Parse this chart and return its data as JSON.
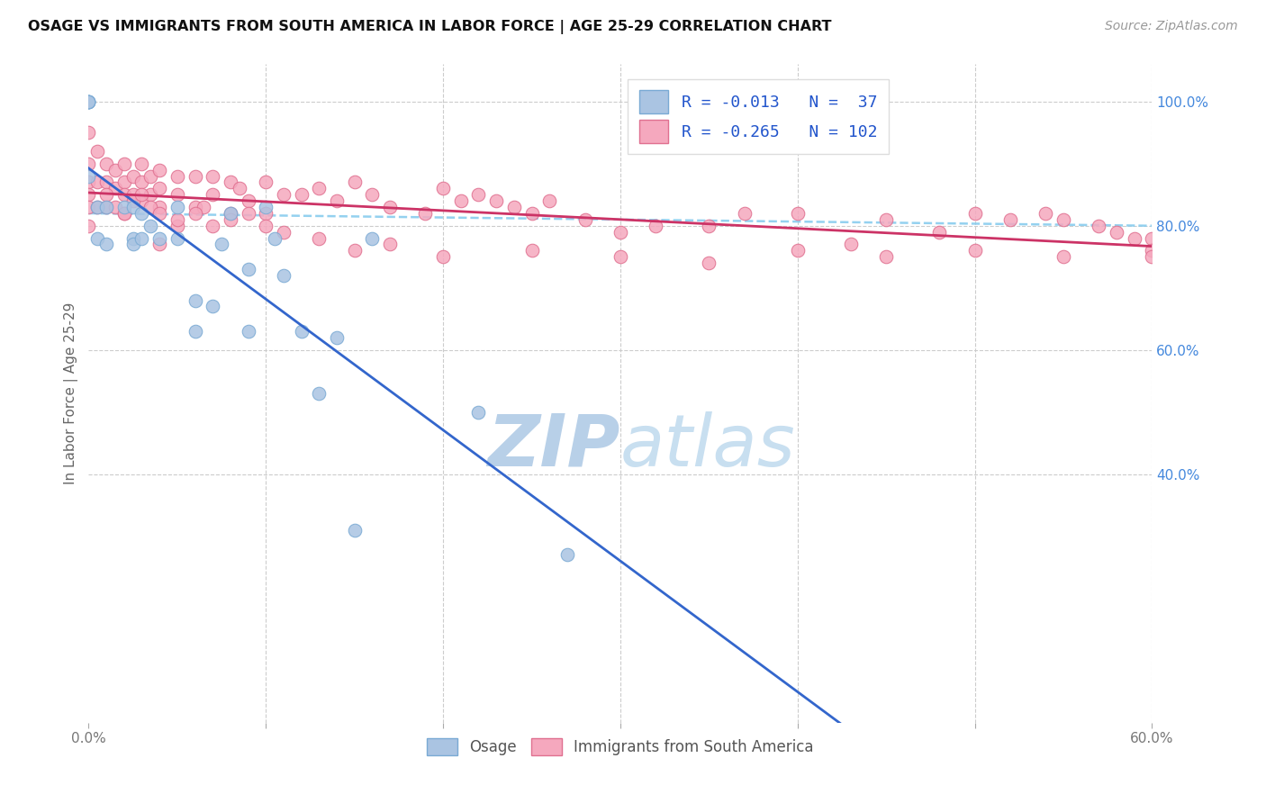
{
  "title": "OSAGE VS IMMIGRANTS FROM SOUTH AMERICA IN LABOR FORCE | AGE 25-29 CORRELATION CHART",
  "source_text": "Source: ZipAtlas.com",
  "ylabel": "In Labor Force | Age 25-29",
  "xlim": [
    0.0,
    0.6
  ],
  "ylim": [
    0.0,
    1.06
  ],
  "grid_color": "#cccccc",
  "background_color": "#ffffff",
  "osage_color": "#aac4e2",
  "osage_edge_color": "#7aaad4",
  "immigrant_color": "#f5a8be",
  "immigrant_edge_color": "#e07090",
  "osage_R": -0.013,
  "osage_N": 37,
  "immigrant_R": -0.265,
  "immigrant_N": 102,
  "legend_color": "#2255cc",
  "trendline_osage_color": "#3366cc",
  "trendline_immigrant_color": "#cc3366",
  "trendline_dashed_color": "#88ccee",
  "watermark_zip": "ZIP",
  "watermark_atlas": "atlas",
  "watermark_color": "#cce0f0",
  "osage_x": [
    0.0,
    0.0,
    0.0,
    0.0,
    0.0,
    0.0,
    0.005,
    0.005,
    0.01,
    0.01,
    0.02,
    0.025,
    0.025,
    0.025,
    0.03,
    0.03,
    0.035,
    0.04,
    0.05,
    0.05,
    0.06,
    0.06,
    0.07,
    0.075,
    0.08,
    0.09,
    0.09,
    0.1,
    0.105,
    0.11,
    0.12,
    0.13,
    0.15,
    0.16,
    0.22,
    0.27,
    0.14
  ],
  "osage_y": [
    1.0,
    1.0,
    1.0,
    1.0,
    1.0,
    0.88,
    0.83,
    0.78,
    0.83,
    0.77,
    0.83,
    0.83,
    0.78,
    0.77,
    0.82,
    0.78,
    0.8,
    0.78,
    0.83,
    0.78,
    0.68,
    0.63,
    0.67,
    0.77,
    0.82,
    0.73,
    0.63,
    0.83,
    0.78,
    0.72,
    0.63,
    0.53,
    0.31,
    0.78,
    0.5,
    0.27,
    0.62
  ],
  "immigrant_x": [
    0.0,
    0.0,
    0.0,
    0.0,
    0.0,
    0.005,
    0.005,
    0.01,
    0.01,
    0.01,
    0.015,
    0.015,
    0.02,
    0.02,
    0.02,
    0.02,
    0.025,
    0.025,
    0.03,
    0.03,
    0.03,
    0.035,
    0.035,
    0.04,
    0.04,
    0.04,
    0.04,
    0.05,
    0.05,
    0.05,
    0.06,
    0.06,
    0.065,
    0.07,
    0.07,
    0.08,
    0.08,
    0.085,
    0.09,
    0.1,
    0.1,
    0.11,
    0.12,
    0.13,
    0.14,
    0.15,
    0.16,
    0.17,
    0.19,
    0.2,
    0.21,
    0.22,
    0.23,
    0.24,
    0.25,
    0.26,
    0.28,
    0.3,
    0.32,
    0.35,
    0.37,
    0.4,
    0.43,
    0.45,
    0.48,
    0.5,
    0.52,
    0.54,
    0.55,
    0.57,
    0.58,
    0.59,
    0.0,
    0.005,
    0.01,
    0.015,
    0.02,
    0.025,
    0.03,
    0.035,
    0.04,
    0.05,
    0.06,
    0.07,
    0.08,
    0.09,
    0.1,
    0.11,
    0.13,
    0.15,
    0.17,
    0.2,
    0.25,
    0.3,
    0.35,
    0.4,
    0.45,
    0.5,
    0.55,
    0.6,
    0.6,
    0.6
  ],
  "immigrant_y": [
    0.95,
    0.9,
    0.87,
    0.85,
    0.83,
    0.92,
    0.87,
    0.9,
    0.87,
    0.83,
    0.89,
    0.86,
    0.9,
    0.87,
    0.85,
    0.82,
    0.88,
    0.85,
    0.9,
    0.87,
    0.84,
    0.88,
    0.85,
    0.89,
    0.86,
    0.83,
    0.77,
    0.88,
    0.85,
    0.8,
    0.88,
    0.83,
    0.83,
    0.88,
    0.85,
    0.87,
    0.82,
    0.86,
    0.84,
    0.87,
    0.82,
    0.85,
    0.85,
    0.86,
    0.84,
    0.87,
    0.85,
    0.83,
    0.82,
    0.86,
    0.84,
    0.85,
    0.84,
    0.83,
    0.82,
    0.84,
    0.81,
    0.79,
    0.8,
    0.8,
    0.82,
    0.82,
    0.77,
    0.81,
    0.79,
    0.82,
    0.81,
    0.82,
    0.81,
    0.8,
    0.79,
    0.78,
    0.8,
    0.83,
    0.85,
    0.83,
    0.82,
    0.84,
    0.85,
    0.83,
    0.82,
    0.81,
    0.82,
    0.8,
    0.81,
    0.82,
    0.8,
    0.79,
    0.78,
    0.76,
    0.77,
    0.75,
    0.76,
    0.75,
    0.74,
    0.76,
    0.75,
    0.76,
    0.75,
    0.78,
    0.76,
    0.75
  ]
}
